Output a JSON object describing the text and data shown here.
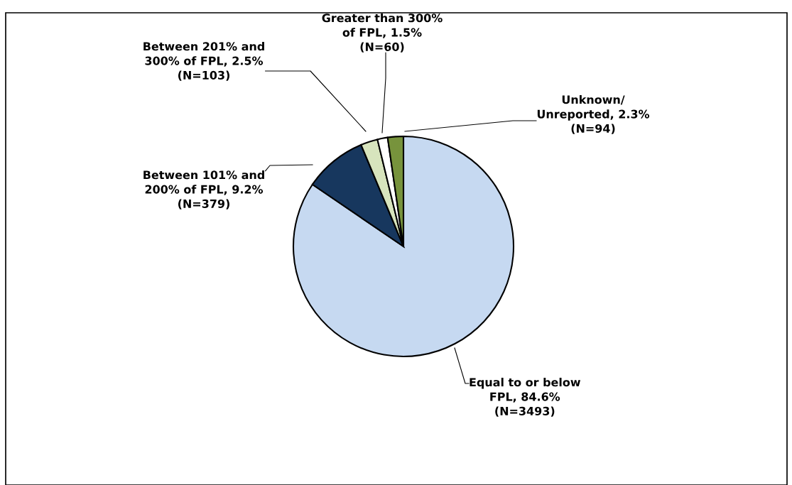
{
  "chart_data": {
    "type": "pie",
    "categories": [
      "Equal to or below\nFPL, 84.6%\n(N=3493)",
      "Between 101% and\n200% of FPL, 9.2%\n(N=379)",
      "Between 201% and\n300% of FPL, 2.5%\n(N=103)",
      "Greater than 300%\nof FPL, 1.5%\n(N=60)",
      "Unknown/\nUnreported, 2.3%\n(N=94)"
    ],
    "values": [
      84.6,
      9.2,
      2.5,
      1.5,
      2.3
    ],
    "colors": [
      "#c6d9f1",
      "#17375e",
      "#d7e4bd",
      "#ffffff",
      "#77933c"
    ],
    "legend": false
  }
}
